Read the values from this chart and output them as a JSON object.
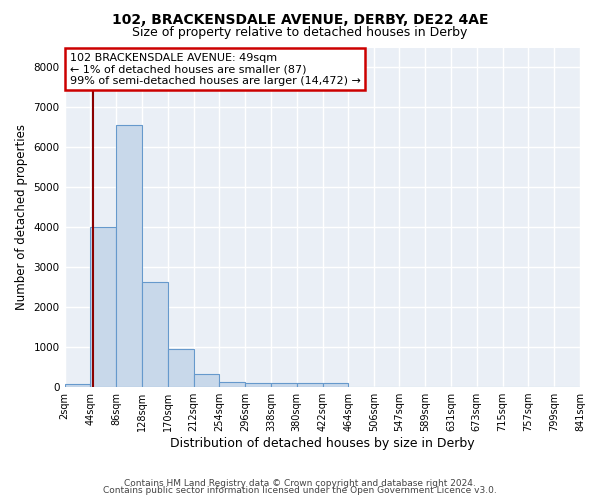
{
  "title": "102, BRACKENSDALE AVENUE, DERBY, DE22 4AE",
  "subtitle": "Size of property relative to detached houses in Derby",
  "xlabel": "Distribution of detached houses by size in Derby",
  "ylabel": "Number of detached properties",
  "bar_bins": [
    2,
    44,
    86,
    128,
    170,
    212,
    254,
    296,
    338,
    380,
    422,
    464,
    506,
    547,
    589,
    631,
    673,
    715,
    757,
    799,
    841
  ],
  "bar_heights": [
    75,
    4000,
    6550,
    2620,
    960,
    320,
    120,
    100,
    90,
    100,
    90,
    0,
    0,
    0,
    0,
    0,
    0,
    0,
    0,
    0
  ],
  "bar_color": "#c8d8ea",
  "bar_edgecolor": "#6699cc",
  "vertical_line_x": 49,
  "vertical_line_color": "#8B0000",
  "annotation_text": "102 BRACKENSDALE AVENUE: 49sqm\n← 1% of detached houses are smaller (87)\n99% of semi-detached houses are larger (14,472) →",
  "annotation_box_edgecolor": "#cc0000",
  "annotation_box_facecolor": "white",
  "ylim": [
    0,
    8500
  ],
  "yticks": [
    0,
    1000,
    2000,
    3000,
    4000,
    5000,
    6000,
    7000,
    8000
  ],
  "background_color": "#eaeff6",
  "grid_color": "#ffffff",
  "footer_line1": "Contains HM Land Registry data © Crown copyright and database right 2024.",
  "footer_line2": "Contains public sector information licensed under the Open Government Licence v3.0.",
  "title_fontsize": 10,
  "subtitle_fontsize": 9,
  "ylabel_fontsize": 8.5,
  "xlabel_fontsize": 9,
  "tick_label_fontsize": 7,
  "annotation_fontsize": 8
}
